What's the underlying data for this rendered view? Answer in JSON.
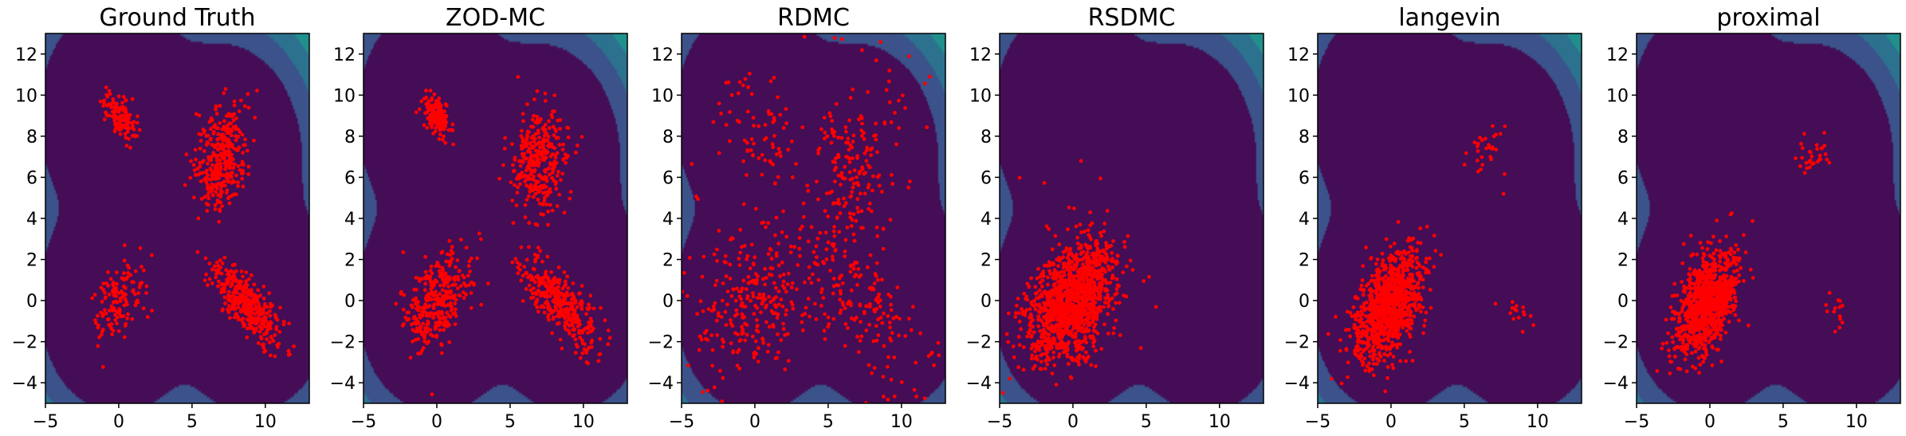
{
  "chart_data": [
    {
      "type": "scatter",
      "title": "Ground Truth",
      "xlim": [
        -5,
        13
      ],
      "ylim": [
        -5,
        13
      ],
      "xticks": [
        -5,
        0,
        5,
        10
      ],
      "yticks": [
        -4,
        -2,
        0,
        2,
        4,
        6,
        8,
        10,
        12
      ],
      "background": "contour",
      "point_color": "#ff0000",
      "clusters": [
        {
          "center": [
            0,
            9
          ],
          "sd": [
            0.55,
            0.55
          ],
          "rho": -0.5,
          "n": 130
        },
        {
          "center": [
            7,
            7
          ],
          "sd": [
            0.9,
            1.2
          ],
          "rho": 0.1,
          "n": 330
        },
        {
          "center": [
            0,
            0
          ],
          "sd": [
            0.9,
            1.0
          ],
          "rho": 0.4,
          "n": 130
        },
        {
          "center": [
            8.7,
            -0.2
          ],
          "sd": [
            1.2,
            1.0
          ],
          "rho": -0.75,
          "n": 360
        }
      ],
      "uniform": []
    },
    {
      "type": "scatter",
      "title": "ZOD-MC",
      "xlim": [
        -5,
        13
      ],
      "ylim": [
        -5,
        13
      ],
      "xticks": [
        -5,
        0,
        5,
        10
      ],
      "yticks": [
        -4,
        -2,
        0,
        2,
        4,
        6,
        8,
        10,
        12
      ],
      "background": "contour",
      "point_color": "#ff0000",
      "clusters": [
        {
          "center": [
            0,
            9
          ],
          "sd": [
            0.45,
            0.5
          ],
          "rho": -0.5,
          "n": 160
        },
        {
          "center": [
            7,
            6.8
          ],
          "sd": [
            0.9,
            1.3
          ],
          "rho": 0.1,
          "n": 330
        },
        {
          "center": [
            0,
            0
          ],
          "sd": [
            1.1,
            1.2
          ],
          "rho": 0.45,
          "n": 330
        },
        {
          "center": [
            8.3,
            0
          ],
          "sd": [
            1.3,
            1.1
          ],
          "rho": -0.75,
          "n": 360
        }
      ],
      "uniform": []
    },
    {
      "type": "scatter",
      "title": "RDMC",
      "xlim": [
        -5,
        13
      ],
      "ylim": [
        -5,
        13
      ],
      "xticks": [
        -5,
        0,
        5,
        10
      ],
      "yticks": [
        -4,
        -2,
        0,
        2,
        4,
        6,
        8,
        10,
        12
      ],
      "background": "contour",
      "point_color": "#ff0000",
      "clusters": [
        {
          "center": [
            0.3,
            8.5
          ],
          "sd": [
            1.1,
            1.3
          ],
          "rho": -0.3,
          "n": 60
        },
        {
          "center": [
            6.5,
            6.5
          ],
          "sd": [
            1.6,
            1.8
          ],
          "rho": 0.1,
          "n": 160
        },
        {
          "center": [
            0,
            0
          ],
          "sd": [
            2.2,
            1.9
          ],
          "rho": 0.3,
          "n": 260
        },
        {
          "center": [
            7.5,
            0
          ],
          "sd": [
            1.8,
            1.7
          ],
          "rho": -0.5,
          "n": 140
        }
      ],
      "uniform": [
        {
          "n": 80,
          "xlim": [
            -5,
            13
          ],
          "ylim": [
            -5,
            13
          ]
        }
      ]
    },
    {
      "type": "scatter",
      "title": "RSDMC",
      "xlim": [
        -5,
        13
      ],
      "ylim": [
        -5,
        13
      ],
      "xticks": [
        -5,
        0,
        5,
        10
      ],
      "yticks": [
        -4,
        -2,
        0,
        2,
        4,
        6,
        8,
        10,
        12
      ],
      "background": "contour",
      "point_color": "#ff0000",
      "clusters": [
        {
          "center": [
            0,
            0
          ],
          "sd": [
            1.5,
            1.5
          ],
          "rho": 0.4,
          "n": 1300
        }
      ],
      "uniform": [
        {
          "n": 14,
          "xlim": [
            -4,
            6
          ],
          "ylim": [
            -4,
            7
          ]
        }
      ]
    },
    {
      "type": "scatter",
      "title": "langevin",
      "xlim": [
        -5,
        13
      ],
      "ylim": [
        -5,
        13
      ],
      "xticks": [
        -5,
        0,
        5,
        10
      ],
      "yticks": [
        -4,
        -2,
        0,
        2,
        4,
        6,
        8,
        10,
        12
      ],
      "background": "contour",
      "point_color": "#ff0000",
      "clusters": [
        {
          "center": [
            -0.2,
            -0.3
          ],
          "sd": [
            1.2,
            1.3
          ],
          "rho": 0.45,
          "n": 1000
        },
        {
          "center": [
            6.6,
            7.3
          ],
          "sd": [
            0.6,
            0.8
          ],
          "rho": 0.1,
          "n": 30
        },
        {
          "center": [
            8.8,
            -0.6
          ],
          "sd": [
            0.6,
            0.5
          ],
          "rho": -0.4,
          "n": 16
        }
      ],
      "uniform": []
    },
    {
      "type": "scatter",
      "title": "proximal",
      "xlim": [
        -5,
        13
      ],
      "ylim": [
        -5,
        13
      ],
      "xticks": [
        -5,
        0,
        5,
        10
      ],
      "yticks": [
        -4,
        -2,
        0,
        2,
        4,
        6,
        8,
        10,
        12
      ],
      "background": "contour",
      "point_color": "#ff0000",
      "clusters": [
        {
          "center": [
            -0.2,
            -0.2
          ],
          "sd": [
            1.05,
            1.25
          ],
          "rho": 0.45,
          "n": 1000
        },
        {
          "center": [
            7.3,
            7.2
          ],
          "sd": [
            0.5,
            0.45
          ],
          "rho": 0.1,
          "n": 30
        },
        {
          "center": [
            8.8,
            -0.6
          ],
          "sd": [
            0.6,
            0.5
          ],
          "rho": -0.4,
          "n": 14
        }
      ],
      "uniform": []
    }
  ],
  "colors": {
    "point": "#ff0000",
    "levels": [
      "#440d56",
      "#3b528b",
      "#2c728e",
      "#21908d",
      "#27ad81",
      "#5cc863",
      "#aadc32",
      "#fde725"
    ]
  }
}
